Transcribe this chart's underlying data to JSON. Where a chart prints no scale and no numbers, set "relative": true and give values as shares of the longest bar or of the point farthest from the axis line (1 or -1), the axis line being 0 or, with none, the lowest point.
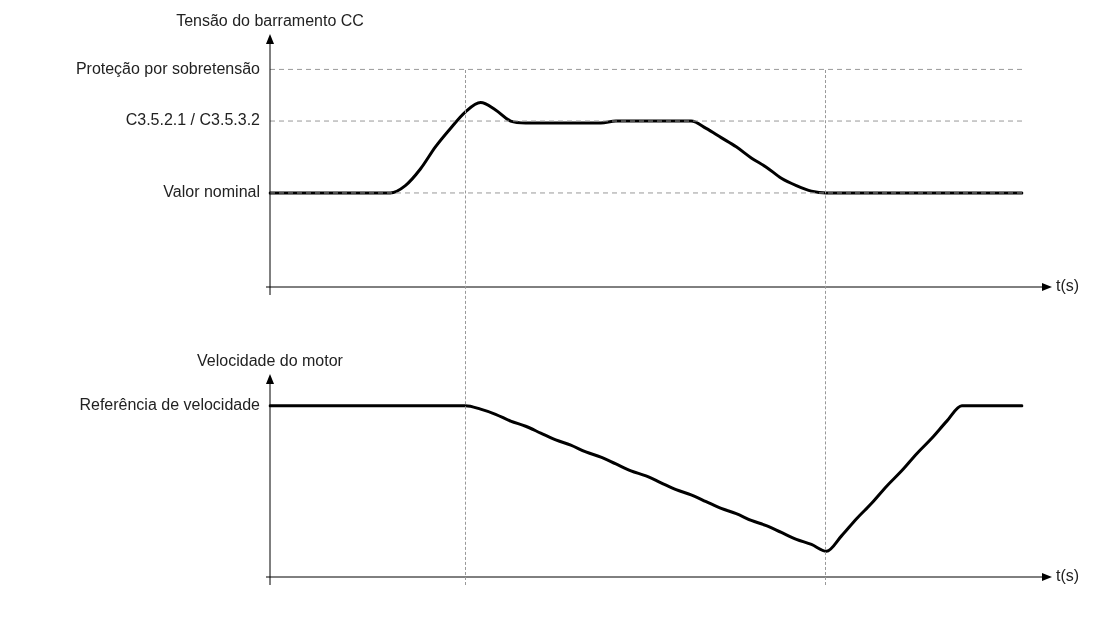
{
  "chart_data": [
    {
      "type": "line",
      "ylabel": "Tensão do barramento CC",
      "xlabel": "t(s)",
      "relative": true,
      "legend": false,
      "marker": "none",
      "line_style": "solid",
      "categories": [
        null,
        null,
        null,
        null,
        null,
        null,
        null,
        null,
        null,
        null,
        null,
        null,
        null,
        null,
        null,
        null,
        null,
        null,
        null,
        null,
        null,
        null,
        null,
        null,
        null,
        null,
        null,
        null,
        null,
        null,
        null,
        null,
        null,
        null,
        null,
        null,
        null,
        null,
        null,
        null,
        null,
        null,
        null,
        null,
        null,
        null,
        null,
        null,
        null,
        null,
        null
      ],
      "series": [
        {
          "color": "#000000",
          "values": [
            0.51,
            0.51,
            0.51,
            0.51,
            0.51,
            0.51,
            0.51,
            0.51,
            0.51,
            0.55,
            0.64,
            0.76,
            0.86,
            0.95,
            1,
            0.96,
            0.9,
            0.89,
            0.89,
            0.89,
            0.89,
            0.89,
            0.89,
            0.9,
            0.9,
            0.9,
            0.9,
            0.9,
            0.9,
            0.86,
            0.81,
            0.76,
            0.7,
            0.65,
            0.59,
            0.55,
            0.52,
            0.51,
            0.51,
            0.51,
            0.51,
            0.51,
            0.51,
            0.51,
            0.51,
            0.51,
            0.51,
            0.51,
            0.51,
            0.51,
            0.51
          ]
        }
      ],
      "ref_lines": [
        {
          "axis": "y",
          "value": 1.18,
          "label": "Proteção por sobretensão",
          "color": "#999999",
          "line_style": "dashed"
        },
        {
          "axis": "y",
          "value": 0.9,
          "label": "C3.5.2.1 / C3.5.3.2",
          "color": "#999999",
          "line_style": "dashed"
        },
        {
          "axis": "y",
          "value": 0.51,
          "label": "Valor nominal",
          "color": "#999999",
          "line_style": "dashed"
        }
      ]
    },
    {
      "type": "line",
      "ylabel": "Velocidade do motor",
      "xlabel": "t(s)",
      "relative": true,
      "legend": false,
      "marker": "none",
      "line_style": "solid",
      "categories": [
        null,
        null,
        null,
        null,
        null,
        null,
        null,
        null,
        null,
        null,
        null,
        null,
        null,
        null,
        null,
        null,
        null,
        null,
        null,
        null,
        null,
        null,
        null,
        null,
        null,
        null,
        null,
        null,
        null,
        null,
        null,
        null,
        null,
        null,
        null,
        null,
        null,
        null,
        null,
        null,
        null,
        null,
        null,
        null,
        null,
        null,
        null,
        null,
        null,
        null,
        null
      ],
      "series": [
        {
          "color": "#000000",
          "values": [
            1,
            1,
            1,
            1,
            1,
            1,
            1,
            1,
            1,
            1,
            1,
            1,
            1,
            1,
            0.98,
            0.95,
            0.91,
            0.88,
            0.84,
            0.8,
            0.77,
            0.73,
            0.7,
            0.66,
            0.62,
            0.59,
            0.55,
            0.51,
            0.48,
            0.44,
            0.4,
            0.37,
            0.33,
            0.3,
            0.26,
            0.22,
            0.19,
            0.15,
            0.24,
            0.34,
            0.43,
            0.53,
            0.62,
            0.72,
            0.81,
            0.91,
            1,
            1,
            1,
            1,
            1
          ]
        }
      ],
      "annotations": [
        "Referência de velocidade"
      ]
    }
  ]
}
